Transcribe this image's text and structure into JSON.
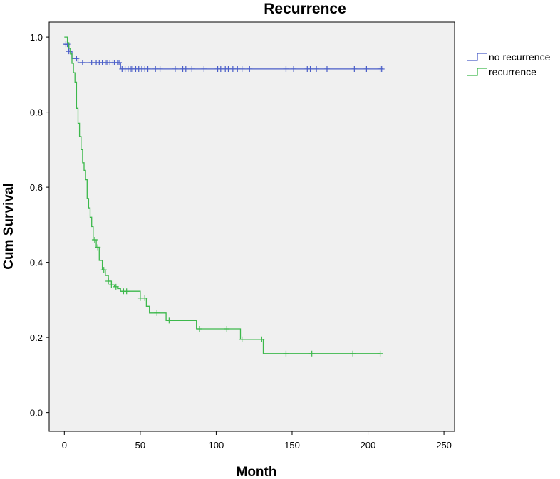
{
  "chart_data": {
    "type": "line",
    "title": "Recurrence",
    "xlabel": "Month",
    "ylabel": "Cum Survival",
    "xlim": [
      -10,
      257
    ],
    "ylim": [
      -0.05,
      1.04
    ],
    "xticks": [
      0,
      50,
      100,
      150,
      200,
      250
    ],
    "yticks": [
      0.0,
      0.2,
      0.4,
      0.6,
      0.8,
      1.0
    ],
    "xtick_labels": [
      "0",
      "50",
      "100",
      "150",
      "200",
      "250"
    ],
    "ytick_labels": [
      "0.0",
      "0.2",
      "0.4",
      "0.6",
      "0.8",
      "1.0"
    ],
    "grid": false,
    "legend_position": "right, outside plot",
    "series": [
      {
        "name": "no recurrence",
        "color": "#4a5ec8",
        "steps": [
          [
            0,
            0.981
          ],
          [
            3,
            0.962
          ],
          [
            5,
            0.943
          ],
          [
            9,
            0.932
          ],
          [
            37,
            0.915
          ],
          [
            210,
            0.915
          ]
        ],
        "censored": [
          [
            1,
            0.981
          ],
          [
            2,
            0.981
          ],
          [
            3,
            0.962
          ],
          [
            8,
            0.943
          ],
          [
            12,
            0.932
          ],
          [
            18,
            0.932
          ],
          [
            21,
            0.932
          ],
          [
            23,
            0.932
          ],
          [
            25,
            0.932
          ],
          [
            27,
            0.932
          ],
          [
            28,
            0.932
          ],
          [
            30,
            0.932
          ],
          [
            32,
            0.932
          ],
          [
            33,
            0.932
          ],
          [
            35,
            0.932
          ],
          [
            36,
            0.932
          ],
          [
            38,
            0.915
          ],
          [
            40,
            0.915
          ],
          [
            42,
            0.915
          ],
          [
            44,
            0.915
          ],
          [
            45,
            0.915
          ],
          [
            47,
            0.915
          ],
          [
            49,
            0.915
          ],
          [
            51,
            0.915
          ],
          [
            53,
            0.915
          ],
          [
            55,
            0.915
          ],
          [
            60,
            0.915
          ],
          [
            63,
            0.915
          ],
          [
            73,
            0.915
          ],
          [
            78,
            0.915
          ],
          [
            80,
            0.915
          ],
          [
            84,
            0.915
          ],
          [
            92,
            0.915
          ],
          [
            101,
            0.915
          ],
          [
            103,
            0.915
          ],
          [
            106,
            0.915
          ],
          [
            108,
            0.915
          ],
          [
            111,
            0.915
          ],
          [
            114,
            0.915
          ],
          [
            117,
            0.915
          ],
          [
            122,
            0.915
          ],
          [
            146,
            0.915
          ],
          [
            151,
            0.915
          ],
          [
            160,
            0.915
          ],
          [
            162,
            0.915
          ],
          [
            166,
            0.915
          ],
          [
            173,
            0.915
          ],
          [
            191,
            0.915
          ],
          [
            199,
            0.915
          ],
          [
            208,
            0.915
          ],
          [
            209,
            0.915
          ]
        ]
      },
      {
        "name": "recurrence",
        "color": "#3cb84b",
        "steps": [
          [
            0,
            1.0
          ],
          [
            2,
            0.985
          ],
          [
            3,
            0.97
          ],
          [
            4,
            0.955
          ],
          [
            5,
            0.93
          ],
          [
            6,
            0.905
          ],
          [
            7,
            0.88
          ],
          [
            8,
            0.81
          ],
          [
            9,
            0.77
          ],
          [
            10,
            0.735
          ],
          [
            11,
            0.7
          ],
          [
            12,
            0.665
          ],
          [
            13,
            0.645
          ],
          [
            14,
            0.62
          ],
          [
            15,
            0.57
          ],
          [
            16,
            0.545
          ],
          [
            17,
            0.52
          ],
          [
            18,
            0.495
          ],
          [
            19,
            0.46
          ],
          [
            21,
            0.44
          ],
          [
            23,
            0.405
          ],
          [
            25,
            0.38
          ],
          [
            27,
            0.365
          ],
          [
            29,
            0.35
          ],
          [
            31,
            0.34
          ],
          [
            33,
            0.335
          ],
          [
            35,
            0.33
          ],
          [
            37,
            0.323
          ],
          [
            50,
            0.305
          ],
          [
            54,
            0.283
          ],
          [
            56,
            0.265
          ],
          [
            67,
            0.245
          ],
          [
            87,
            0.223
          ],
          [
            116,
            0.195
          ],
          [
            131,
            0.157
          ],
          [
            208,
            0.157
          ]
        ],
        "censored": [
          [
            20,
            0.46
          ],
          [
            22,
            0.44
          ],
          [
            26,
            0.38
          ],
          [
            29,
            0.35
          ],
          [
            31,
            0.34
          ],
          [
            34,
            0.335
          ],
          [
            39,
            0.323
          ],
          [
            41,
            0.323
          ],
          [
            50,
            0.305
          ],
          [
            53,
            0.305
          ],
          [
            61,
            0.265
          ],
          [
            69,
            0.245
          ],
          [
            89,
            0.223
          ],
          [
            107,
            0.223
          ],
          [
            117,
            0.195
          ],
          [
            130,
            0.195
          ],
          [
            146,
            0.157
          ],
          [
            163,
            0.157
          ],
          [
            190,
            0.157
          ],
          [
            208,
            0.157
          ]
        ]
      }
    ]
  }
}
